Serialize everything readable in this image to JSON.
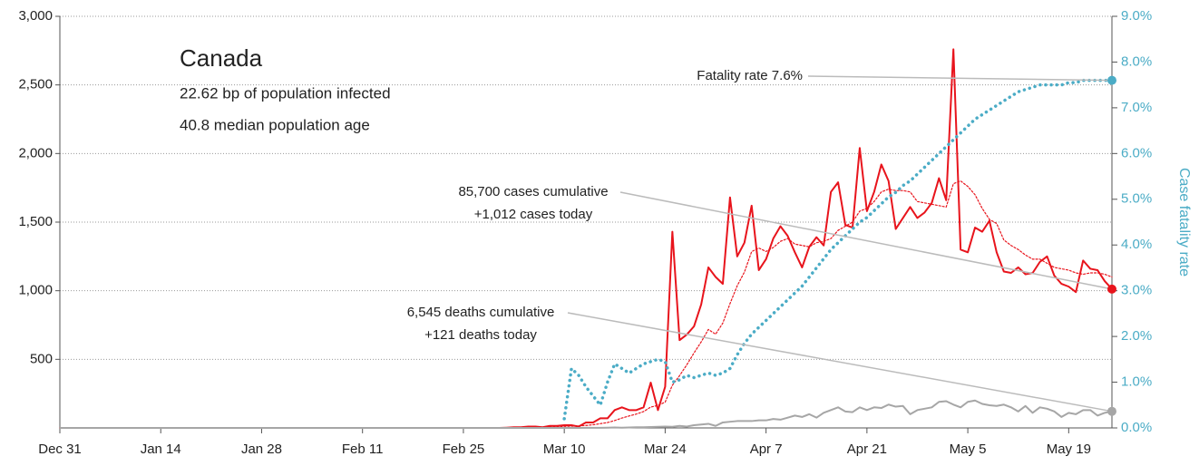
{
  "chart_data": {
    "type": "line",
    "title": "Canada",
    "subtitle": [
      "22.62 bp of population infected",
      "40.8 median population age"
    ],
    "callouts": [
      [
        "Fatality rate 7.6%"
      ],
      [
        "85,700 cases cumulative",
        "+1,012 cases today"
      ],
      [
        "6,545 deaths cumulative",
        "+121 deaths today"
      ]
    ],
    "y2_label": "Case fatality rate",
    "x": [
      0,
      60,
      61,
      62,
      63,
      64,
      65,
      66,
      67,
      68,
      69,
      70,
      71,
      72,
      73,
      74,
      75,
      76,
      77,
      78,
      79,
      80,
      81,
      82,
      83,
      84,
      85,
      86,
      87,
      88,
      89,
      90,
      91,
      92,
      93,
      94,
      95,
      96,
      97,
      98,
      99,
      100,
      101,
      102,
      103,
      104,
      105,
      106,
      107,
      108,
      109,
      110,
      111,
      112,
      113,
      114,
      115,
      116,
      117,
      118,
      119,
      120,
      121,
      122,
      123,
      124,
      125,
      126,
      127,
      128,
      129,
      130,
      131,
      132,
      133,
      134,
      135,
      136,
      137,
      138,
      139,
      140,
      141,
      142,
      143,
      144,
      145,
      146
    ],
    "xlim": [
      0,
      146
    ],
    "xticks": [
      {
        "value": 0,
        "label": "Dec 31"
      },
      {
        "value": 14,
        "label": "Jan 14"
      },
      {
        "value": 28,
        "label": "Jan 28"
      },
      {
        "value": 42,
        "label": "Feb 11"
      },
      {
        "value": 56,
        "label": "Feb 25"
      },
      {
        "value": 70,
        "label": "Mar 10"
      },
      {
        "value": 84,
        "label": "Mar 24"
      },
      {
        "value": 98,
        "label": "Apr 7"
      },
      {
        "value": 112,
        "label": "Apr 21"
      },
      {
        "value": 126,
        "label": "May 5"
      },
      {
        "value": 140,
        "label": "May 19"
      }
    ],
    "ylim": [
      0,
      3000
    ],
    "yticks": [
      500,
      {
        "value": 1000,
        "label": "1,000"
      },
      {
        "value": 1500,
        "label": "1,500"
      },
      {
        "value": 2000,
        "label": "2,000"
      },
      {
        "value": 2500,
        "label": "2,500"
      },
      {
        "value": 3000,
        "label": "3,000"
      }
    ],
    "y2lim": [
      0,
      9
    ],
    "y2ticks": [
      {
        "value": 0,
        "label": "0.0%"
      },
      {
        "value": 1,
        "label": "1.0%"
      },
      {
        "value": 2,
        "label": "2.0%"
      },
      {
        "value": 3,
        "label": "3.0%"
      },
      {
        "value": 4,
        "label": "4.0%"
      },
      {
        "value": 5,
        "label": "5.0%"
      },
      {
        "value": 6,
        "label": "6.0%"
      },
      {
        "value": 7,
        "label": "7.0%"
      },
      {
        "value": 8,
        "label": "8.0%"
      },
      {
        "value": 9,
        "label": "9.0%"
      }
    ],
    "grid": true,
    "series": [
      {
        "color": "#e8141c",
        "style": "solid",
        "values": [
          0,
          0,
          0,
          2,
          5,
          5,
          10,
          10,
          5,
          15,
          15,
          20,
          20,
          10,
          40,
          40,
          70,
          70,
          130,
          150,
          130,
          130,
          150,
          330,
          130,
          300,
          1430,
          640,
          680,
          740,
          900,
          1170,
          1100,
          1050,
          1680,
          1250,
          1350,
          1620,
          1150,
          1230,
          1380,
          1470,
          1400,
          1280,
          1170,
          1320,
          1390,
          1330,
          1720,
          1790,
          1480,
          1460,
          2040,
          1580,
          1720,
          1920,
          1800,
          1450,
          1530,
          1610,
          1530,
          1570,
          1640,
          1820,
          1660,
          2760,
          1300,
          1280,
          1460,
          1430,
          1510,
          1280,
          1140,
          1130,
          1170,
          1120,
          1130,
          1210,
          1250,
          1110,
          1050,
          1030,
          990,
          1220,
          1160,
          1150,
          1070,
          1012
        ]
      },
      {
        "color": "#e8141c",
        "style": "dotted",
        "values": [
          0,
          0,
          0,
          0,
          1,
          2,
          3,
          5,
          5,
          7,
          9,
          11,
          13,
          14,
          18,
          23,
          31,
          39,
          54,
          72,
          87,
          101,
          119,
          152,
          164,
          188,
          311,
          381,
          460,
          546,
          627,
          718,
          683,
          764,
          906,
          1036,
          1136,
          1285,
          1311,
          1286,
          1315,
          1360,
          1380,
          1340,
          1330,
          1320,
          1350,
          1360,
          1380,
          1440,
          1470,
          1500,
          1580,
          1600,
          1650,
          1720,
          1740,
          1730,
          1730,
          1720,
          1650,
          1640,
          1630,
          1620,
          1610,
          1780,
          1800,
          1760,
          1700,
          1600,
          1520,
          1490,
          1370,
          1330,
          1300,
          1260,
          1230,
          1230,
          1200,
          1170,
          1160,
          1150,
          1130,
          1120,
          1130,
          1130,
          1120,
          1100
        ]
      },
      {
        "color": "#a6a6a6",
        "style": "solid",
        "values": [
          0,
          0,
          0,
          0,
          0,
          0,
          0,
          0,
          0,
          0,
          0,
          0,
          1,
          0,
          1,
          1,
          1,
          2,
          3,
          2,
          3,
          5,
          5,
          7,
          8,
          10,
          8,
          15,
          10,
          20,
          25,
          30,
          15,
          40,
          45,
          50,
          50,
          50,
          55,
          55,
          65,
          60,
          75,
          90,
          80,
          100,
          75,
          110,
          130,
          150,
          120,
          115,
          150,
          130,
          150,
          145,
          170,
          155,
          160,
          100,
          130,
          140,
          150,
          190,
          195,
          170,
          150,
          190,
          200,
          175,
          165,
          160,
          170,
          150,
          120,
          160,
          110,
          150,
          140,
          120,
          80,
          110,
          100,
          130,
          130,
          90,
          110,
          121
        ]
      },
      {
        "color": "#4bacc6",
        "style": "dotted",
        "axis": "y2",
        "values": [
          null,
          null,
          null,
          null,
          null,
          null,
          null,
          null,
          null,
          null,
          null,
          0.2,
          1.3,
          1.15,
          0.9,
          0.7,
          0.5,
          1.0,
          1.4,
          1.3,
          1.2,
          1.3,
          1.4,
          1.45,
          1.5,
          1.45,
          1.0,
          1.05,
          1.15,
          1.1,
          1.15,
          1.2,
          1.15,
          1.2,
          1.3,
          1.6,
          1.85,
          2.05,
          2.2,
          2.35,
          2.5,
          2.65,
          2.8,
          2.95,
          3.1,
          3.3,
          3.5,
          3.7,
          3.9,
          4.05,
          4.2,
          4.35,
          4.5,
          4.6,
          4.75,
          4.9,
          5.05,
          5.15,
          5.3,
          5.4,
          5.55,
          5.7,
          5.85,
          6.0,
          6.15,
          6.3,
          6.45,
          6.6,
          6.75,
          6.85,
          6.95,
          7.05,
          7.15,
          7.25,
          7.35,
          7.4,
          7.45,
          7.5,
          7.5,
          7.5,
          7.5,
          7.55,
          7.55,
          7.6,
          7.6,
          7.6,
          7.6,
          7.6
        ]
      }
    ]
  }
}
